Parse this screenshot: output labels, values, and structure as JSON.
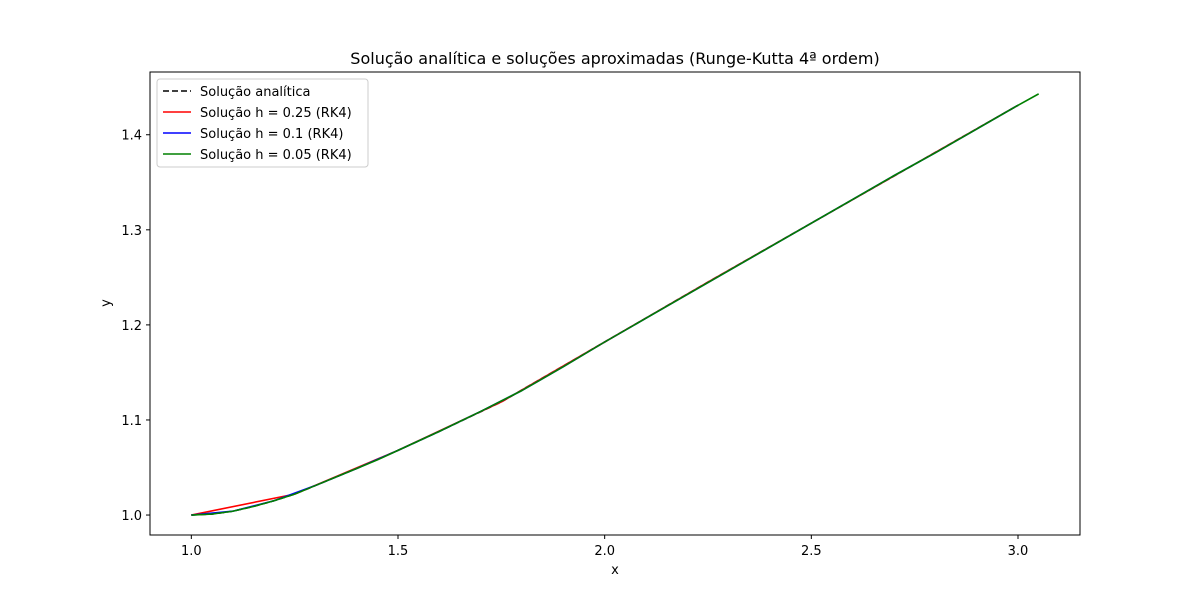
{
  "chart_data": {
    "type": "line",
    "title": "Solução analítica e soluções aproximadas (Runge-Kutta 4ª ordem)",
    "xlabel": "x",
    "ylabel": "y",
    "xlim": [
      0.9,
      3.15
    ],
    "ylim": [
      0.979,
      1.466
    ],
    "xticks": [
      1.0,
      1.5,
      2.0,
      2.5,
      3.0
    ],
    "yticks": [
      1.0,
      1.1,
      1.2,
      1.3,
      1.4
    ],
    "xtick_labels": [
      "1.0",
      "1.5",
      "2.0",
      "2.5",
      "3.0"
    ],
    "ytick_labels": [
      "1.0",
      "1.1",
      "1.2",
      "1.3",
      "1.4"
    ],
    "grid": false,
    "legend_position": "top-left",
    "series": [
      {
        "name": "Solução analítica",
        "color": "#000000",
        "style": "dashed",
        "x": [
          1.0,
          1.05,
          1.1,
          1.15,
          1.2,
          1.25,
          1.3,
          1.4,
          1.5,
          1.6,
          1.75,
          2.0,
          2.25,
          2.5,
          2.75,
          3.0
        ],
        "y": [
          1.0,
          1.001,
          1.004,
          1.009,
          1.015,
          1.022,
          1.031,
          1.049,
          1.068,
          1.088,
          1.119,
          1.182,
          1.245,
          1.307,
          1.369,
          1.431
        ]
      },
      {
        "name": "Solução h = 0.25 (RK4)",
        "color": "#ff0000",
        "style": "solid",
        "x": [
          1.0,
          1.25,
          1.5,
          1.75,
          2.0,
          2.25,
          2.5,
          2.75,
          3.0
        ],
        "y": [
          1.0,
          1.022,
          1.068,
          1.119,
          1.182,
          1.245,
          1.307,
          1.369,
          1.431
        ]
      },
      {
        "name": "Solução h = 0.1 (RK4)",
        "color": "#0000ff",
        "style": "solid",
        "x": [
          1.0,
          1.1,
          1.2,
          1.3,
          1.4,
          1.5,
          1.6,
          1.7,
          1.8,
          1.9,
          2.0,
          2.1,
          2.2,
          2.3,
          2.4,
          2.5,
          2.6,
          2.7,
          2.8,
          2.9,
          3.0
        ],
        "y": [
          1.0,
          1.004,
          1.015,
          1.031,
          1.049,
          1.068,
          1.088,
          1.109,
          1.131,
          1.156,
          1.182,
          1.207,
          1.232,
          1.257,
          1.282,
          1.307,
          1.332,
          1.357,
          1.381,
          1.406,
          1.431
        ]
      },
      {
        "name": "Solução h = 0.05 (RK4)",
        "color": "#008000",
        "style": "solid",
        "x": [
          1.0,
          1.05,
          1.1,
          1.15,
          1.2,
          1.25,
          1.3,
          1.35,
          1.4,
          1.45,
          1.5,
          1.6,
          1.7,
          1.8,
          1.9,
          2.0,
          2.1,
          2.2,
          2.3,
          2.4,
          2.5,
          2.6,
          2.7,
          2.8,
          2.9,
          3.0,
          3.05
        ],
        "y": [
          1.0,
          1.001,
          1.004,
          1.009,
          1.015,
          1.022,
          1.031,
          1.04,
          1.049,
          1.058,
          1.068,
          1.088,
          1.109,
          1.131,
          1.156,
          1.182,
          1.207,
          1.232,
          1.257,
          1.282,
          1.307,
          1.332,
          1.357,
          1.381,
          1.406,
          1.431,
          1.443
        ]
      }
    ]
  }
}
